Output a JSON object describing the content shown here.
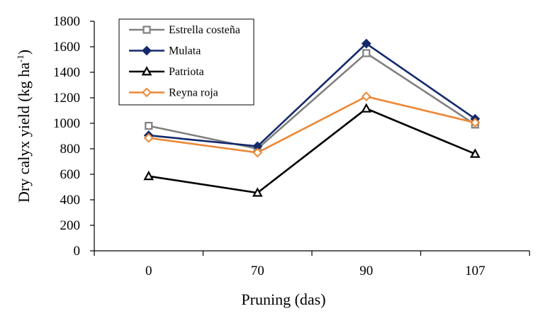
{
  "chart_data": {
    "type": "line",
    "title": "",
    "categories": [
      "0",
      "70",
      "90",
      "107"
    ],
    "xlabel": "Pruning (das)",
    "ylabel_main": "Dry calyx yield (kg ha",
    "ylabel_sup": "-1",
    "ylabel_close": ")",
    "ylim": [
      0,
      1800
    ],
    "yticks": [
      "0",
      "200",
      "400",
      "600",
      "800",
      "1000",
      "1200",
      "1400",
      "1600",
      "1800"
    ],
    "legend_position": "top-left",
    "series": [
      {
        "name": "Estrella costeña",
        "color": "#808080",
        "marker": "square-open",
        "values": [
          980,
          800,
          1550,
          990
        ]
      },
      {
        "name": "Mulata",
        "color": "#13296b",
        "marker": "diamond",
        "values": [
          905,
          820,
          1625,
          1035
        ]
      },
      {
        "name": "Patriota",
        "color": "#000000",
        "marker": "triangle-open",
        "values": [
          585,
          455,
          1115,
          760
        ]
      },
      {
        "name": "Reyna roja",
        "color": "#ed8735",
        "marker": "diamond-open",
        "values": [
          885,
          770,
          1210,
          1005
        ]
      }
    ]
  }
}
